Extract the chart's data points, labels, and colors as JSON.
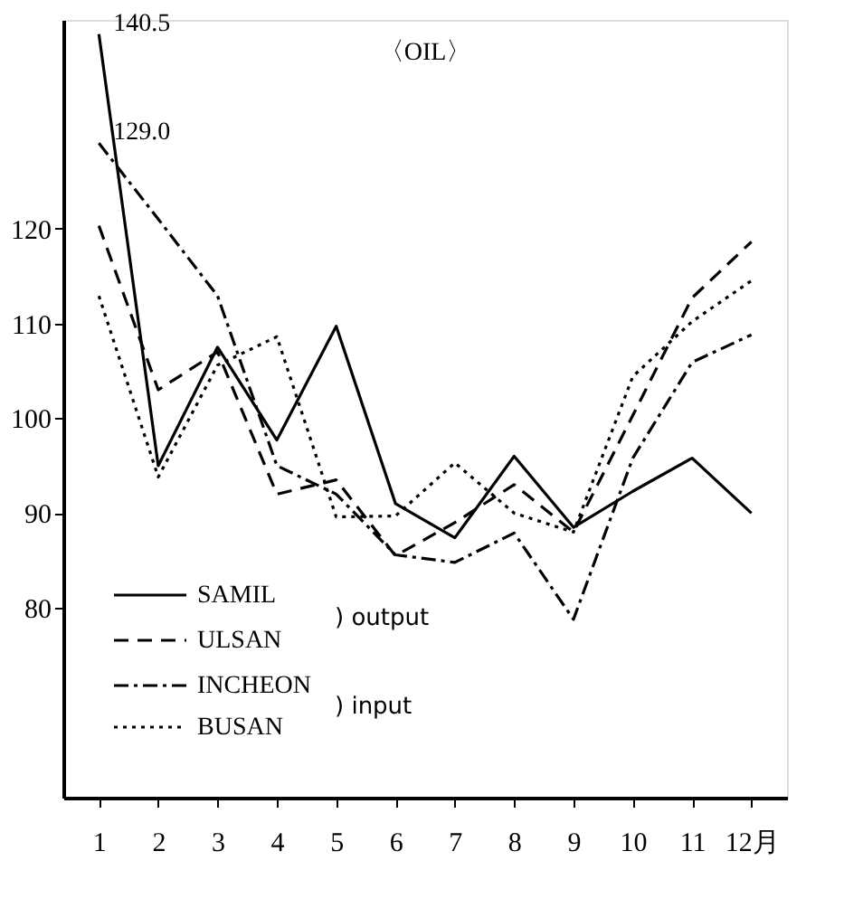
{
  "chart_data": {
    "type": "line",
    "title": "〈OIL〉",
    "categories": [
      "1",
      "2",
      "3",
      "4",
      "5",
      "6",
      "7",
      "8",
      "9",
      "10",
      "11",
      "12月"
    ],
    "series": [
      {
        "name": "SAMIL",
        "color": "#000000",
        "line_style": "solid",
        "values": [
          140.5,
          95,
          107.5,
          97.7,
          109.7,
          91,
          87.4,
          96,
          88.5,
          92.3,
          95.8,
          90
        ]
      },
      {
        "name": "ULSAN",
        "color": "#000000",
        "line_style": "dashed",
        "values": [
          120.3,
          103,
          107,
          92,
          93.5,
          85.5,
          89,
          93,
          88,
          100.3,
          112.7,
          118.6
        ]
      },
      {
        "name": "INCHEON",
        "color": "#000000",
        "line_style": "dashdot",
        "values": [
          129.0,
          121,
          112.9,
          95,
          92,
          85.6,
          84.8,
          87.9,
          78.8,
          95.8,
          105.9,
          108.8
        ]
      },
      {
        "name": "BUSAN",
        "color": "#000000",
        "line_style": "dotted",
        "values": [
          112.9,
          93.8,
          105.6,
          108.6,
          89.6,
          89.7,
          95.3,
          90,
          88,
          104.4,
          110.2,
          114.5
        ]
      }
    ],
    "ylim": [
      60,
      142
    ],
    "yticks": [
      80,
      90,
      100,
      110,
      120
    ],
    "grid": false,
    "legend": "bottom left",
    "marker": "none",
    "annotations": [
      {
        "text": "140.5",
        "x": "1",
        "y": 140.5
      },
      {
        "text": "129.0",
        "x": "1",
        "y": 129.0
      },
      ") output",
      ") input"
    ]
  }
}
